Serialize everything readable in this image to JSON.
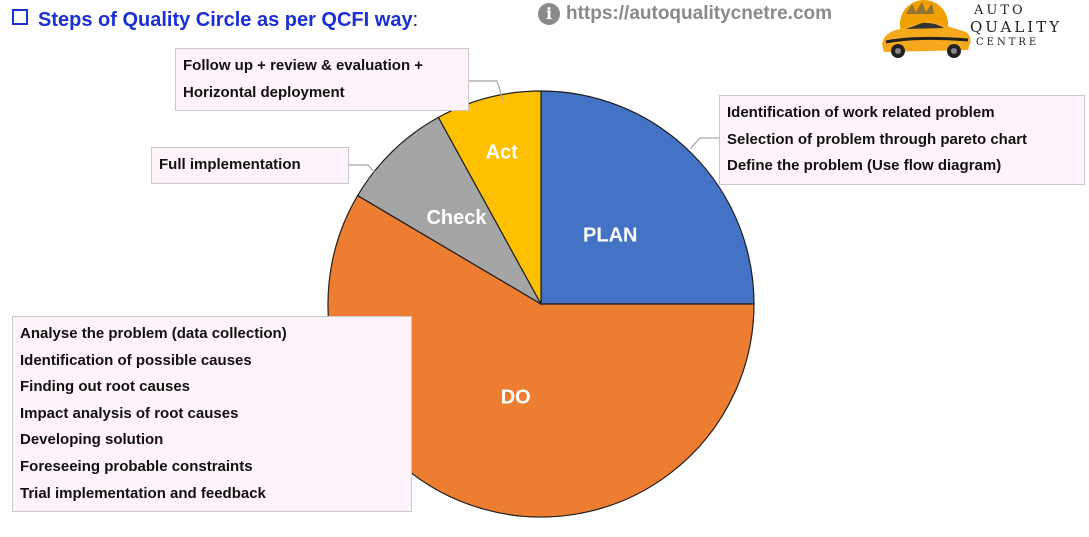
{
  "header": {
    "title": "Steps of Quality Circle as per QCFI way",
    "title_suffix": ":",
    "website": "https://autoqualitycnetre.com",
    "website_icon": "info-icon"
  },
  "logo": {
    "line1": "AUTO",
    "line2": "QUALITY",
    "line3": "CENTRE",
    "icon": "car-icon"
  },
  "chart_data": {
    "type": "pie",
    "slices": [
      {
        "label": "PLAN",
        "value": 25,
        "color": "#4472c4"
      },
      {
        "label": "DO",
        "value": 58.5,
        "color": "#ed7d31"
      },
      {
        "label": "Check",
        "value": 8.5,
        "color": "#a5a5a5"
      },
      {
        "label": "Act",
        "value": 8,
        "color": "#ffc000"
      }
    ],
    "start": "12 o'clock, clockwise",
    "annotations": {
      "plan": [
        "Identification of work related problem",
        "Selection of problem through pareto chart",
        "Define the problem (Use flow diagram)"
      ],
      "do": [
        "Analyse the problem (data collection)",
        "Identification of possible causes",
        "Finding out root causes",
        "Impact analysis of root causes",
        "Developing solution",
        "Foreseeing probable constraints",
        "Trial implementation and feedback"
      ],
      "check": [
        "Full implementation"
      ],
      "act": [
        "Follow up + review & evaluation +",
        "Horizontal deployment"
      ]
    }
  }
}
